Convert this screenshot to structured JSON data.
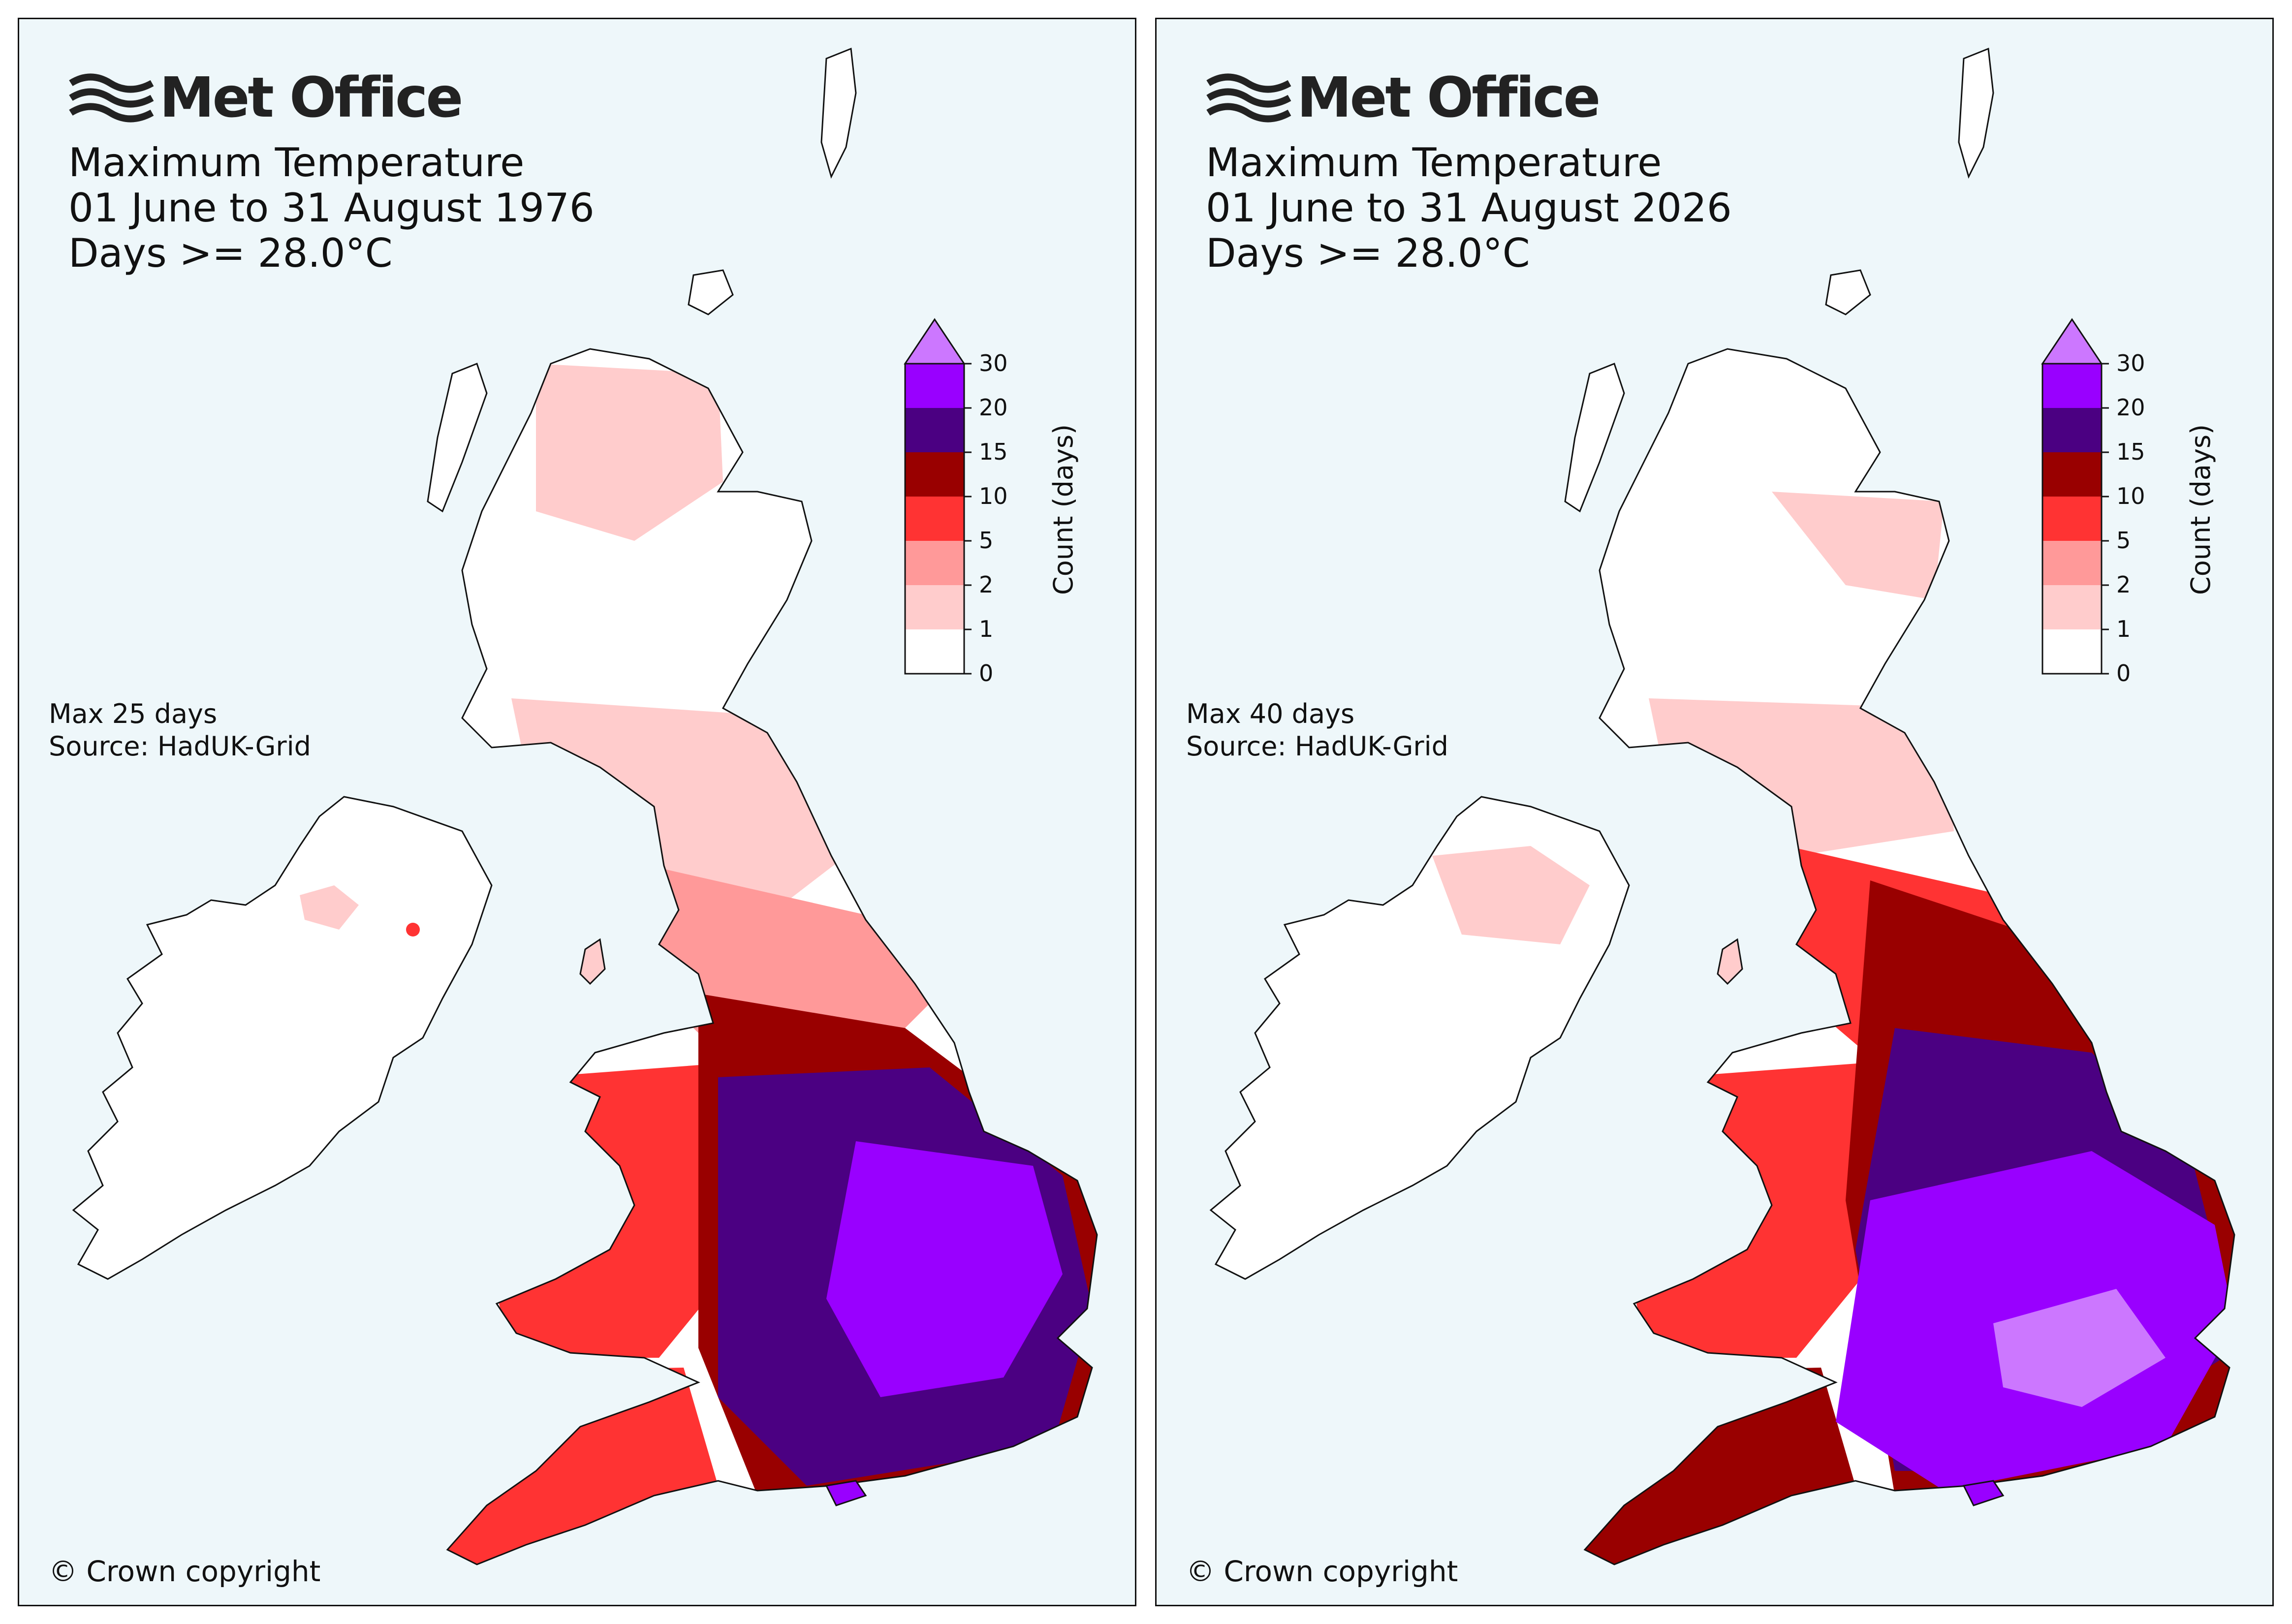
{
  "colors": {
    "sea": "#eef7fa",
    "land_zero": "#ffffff",
    "coast": "#111111",
    "bins": [
      "#ffffff",
      "#ffcccc",
      "#ff9999",
      "#ff3333",
      "#990000",
      "#4b0082",
      "#9900ff",
      "#cc77ff"
    ]
  },
  "colorbar": {
    "label": "Count (days)",
    "ticks": [
      "0",
      "1",
      "2",
      "5",
      "10",
      "15",
      "20",
      "30"
    ]
  },
  "maps": [
    {
      "brand": "Met Office",
      "title_line1": "Maximum Temperature",
      "title_line2": "01 June to 31 August 1976",
      "title_line3": "Days >= 28.0°C",
      "max_text": "Max 25 days",
      "source_text": "Source: HadUK-Grid",
      "copyright": "© Crown copyright"
    },
    {
      "brand": "Met Office",
      "title_line1": "Maximum Temperature",
      "title_line2": "01 June to 31 August 2026",
      "title_line3": "Days >= 28.0°C",
      "max_text": "Max 40 days",
      "source_text": "Source: HadUK-Grid",
      "copyright": "© Crown copyright"
    }
  ]
}
